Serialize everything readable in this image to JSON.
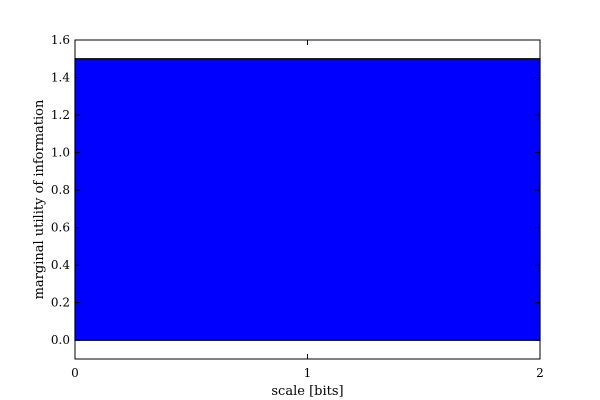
{
  "chart_data": {
    "type": "area",
    "title": "",
    "xlabel": "scale [bits]",
    "ylabel": "marginal utility of information",
    "xlim": [
      0,
      2
    ],
    "ylim": [
      -0.1,
      1.6
    ],
    "x_ticks": [
      0,
      1,
      2
    ],
    "x_tick_labels": [
      "0",
      "1",
      "2"
    ],
    "y_ticks": [
      0.0,
      0.2,
      0.4,
      0.6,
      0.8,
      1.0,
      1.2,
      1.4,
      1.6
    ],
    "y_tick_labels": [
      "0.0",
      "0.2",
      "0.4",
      "0.6",
      "0.8",
      "1.0",
      "1.2",
      "1.4",
      "1.6"
    ],
    "grid": false,
    "series": [
      {
        "x": [
          0,
          2
        ],
        "y": [
          1.5,
          1.5
        ],
        "baseline": 0,
        "color": "#0000ff",
        "edge_color": "#000000"
      }
    ]
  }
}
